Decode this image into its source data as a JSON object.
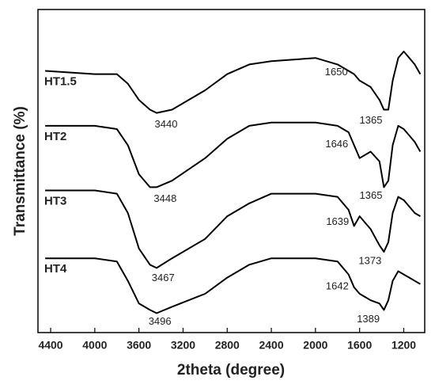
{
  "chart_data": {
    "type": "line",
    "x_label": "2theta (degree)",
    "y_label": "Transmittance (%)",
    "xlim": [
      4515,
      1010
    ],
    "ylim": [
      0,
      100
    ],
    "xticks": [
      4400,
      4000,
      3600,
      3200,
      2800,
      2400,
      2000,
      1600,
      1200
    ],
    "x": [
      4450,
      4000,
      3800,
      3700,
      3600,
      3500,
      3440,
      3300,
      3000,
      2800,
      2600,
      2400,
      2000,
      1800,
      1700,
      1650,
      1600,
      1500,
      1420,
      1380,
      1340,
      1300,
      1250,
      1200,
      1150,
      1100,
      1050
    ],
    "series": [
      {
        "name": "HT1.5",
        "color": "#000000",
        "annotations": [
          3440,
          1650,
          1365
        ],
        "values": [
          81,
          80,
          80,
          77,
          72,
          69,
          68,
          69,
          75,
          80,
          83,
          84,
          85,
          83,
          81,
          80,
          78,
          76,
          72,
          69,
          69,
          78,
          85,
          87,
          85,
          83,
          80
        ]
      },
      {
        "name": "HT2",
        "color": "#000000",
        "annotations": [
          3448,
          1646,
          1365
        ],
        "values": [
          64,
          64,
          63,
          58,
          49,
          45,
          45,
          47,
          54,
          60,
          64,
          65,
          65,
          64,
          62,
          58,
          54,
          56,
          53,
          45,
          47,
          58,
          64,
          63,
          61,
          59,
          56
        ]
      },
      {
        "name": "HT3",
        "color": "#000000",
        "annotations": [
          3467,
          1639,
          1373
        ],
        "values": [
          44,
          44,
          43,
          37,
          26,
          21,
          20,
          23,
          29,
          36,
          40,
          43,
          43,
          42,
          38,
          33,
          36,
          32,
          27,
          25,
          28,
          37,
          42,
          41,
          39,
          37,
          36
        ]
      },
      {
        "name": "HT4",
        "color": "#000000",
        "annotations": [
          3496,
          1642,
          1389
        ],
        "values": [
          23,
          23,
          22,
          16,
          9,
          7,
          6,
          8,
          12,
          17,
          21,
          23,
          23,
          22,
          18,
          14,
          12,
          10,
          9,
          7,
          10,
          16,
          19,
          18,
          17,
          16,
          15
        ]
      }
    ]
  }
}
